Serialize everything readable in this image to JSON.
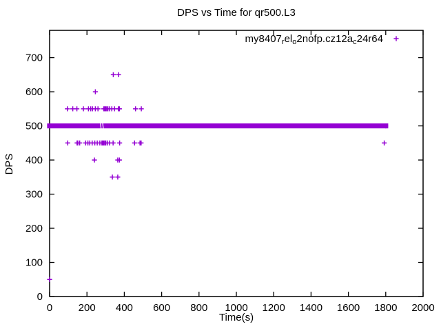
{
  "window": {
    "background": "#ffffff",
    "foreground": "#000000"
  },
  "chart_data": {
    "type": "scatter",
    "title": "DPS vs Time for qr500.L3",
    "xlabel": "Time(s)",
    "ylabel": "DPS",
    "xlim": [
      0,
      2000
    ],
    "ylim": [
      0,
      780
    ],
    "xticks": [
      0,
      200,
      400,
      600,
      800,
      1000,
      1200,
      1400,
      1600,
      1800,
      2000
    ],
    "yticks": [
      0,
      100,
      200,
      300,
      400,
      500,
      600,
      700
    ],
    "grid": false,
    "marker": "plus",
    "marker_color": "#9400D3",
    "legend": {
      "position": "top-right-inside",
      "marker": "plus",
      "color": "#9400D3",
      "label_plain": "my8407_rel_o2nofp.cz12a_c24r64",
      "label_segments": [
        {
          "text": "my8407",
          "sub": false
        },
        {
          "text": "r",
          "sub": true
        },
        {
          "text": "el",
          "sub": false
        },
        {
          "text": "o",
          "sub": true
        },
        {
          "text": "2nofp.cz12a",
          "sub": false
        },
        {
          "text": "c",
          "sub": true
        },
        {
          "text": "24r64",
          "sub": false
        }
      ]
    },
    "series": [
      {
        "name": "my8407_rel_o2nofp.cz12a_c24r64",
        "marker": "plus",
        "color": "#9400D3",
        "band": {
          "y": 500,
          "x_from": 0,
          "x_to": 1800,
          "gaps_x": [
            272,
            284
          ]
        },
        "points": [
          [
            0,
            50
          ],
          [
            95,
            550
          ],
          [
            124,
            550
          ],
          [
            146,
            550
          ],
          [
            181,
            550
          ],
          [
            208,
            550
          ],
          [
            220,
            550
          ],
          [
            230,
            550
          ],
          [
            245,
            550
          ],
          [
            259,
            550
          ],
          [
            290,
            550
          ],
          [
            295,
            550
          ],
          [
            300,
            550
          ],
          [
            306,
            550
          ],
          [
            312,
            550
          ],
          [
            321,
            550
          ],
          [
            333,
            550
          ],
          [
            348,
            550
          ],
          [
            368,
            550
          ],
          [
            374,
            550
          ],
          [
            460,
            550
          ],
          [
            491,
            550
          ],
          [
            245,
            600
          ],
          [
            341,
            650
          ],
          [
            369,
            650
          ],
          [
            97,
            450
          ],
          [
            147,
            450
          ],
          [
            151,
            450
          ],
          [
            161,
            450
          ],
          [
            193,
            450
          ],
          [
            205,
            450
          ],
          [
            215,
            450
          ],
          [
            228,
            450
          ],
          [
            242,
            450
          ],
          [
            255,
            450
          ],
          [
            269,
            450
          ],
          [
            280,
            450
          ],
          [
            285,
            450
          ],
          [
            290,
            450
          ],
          [
            296,
            450
          ],
          [
            301,
            450
          ],
          [
            309,
            450
          ],
          [
            321,
            450
          ],
          [
            340,
            450
          ],
          [
            375,
            450
          ],
          [
            455,
            450
          ],
          [
            484,
            450
          ],
          [
            490,
            450
          ],
          [
            1792,
            450
          ],
          [
            240,
            400
          ],
          [
            365,
            400
          ],
          [
            374,
            400
          ],
          [
            336,
            350
          ],
          [
            365,
            350
          ]
        ]
      }
    ]
  }
}
